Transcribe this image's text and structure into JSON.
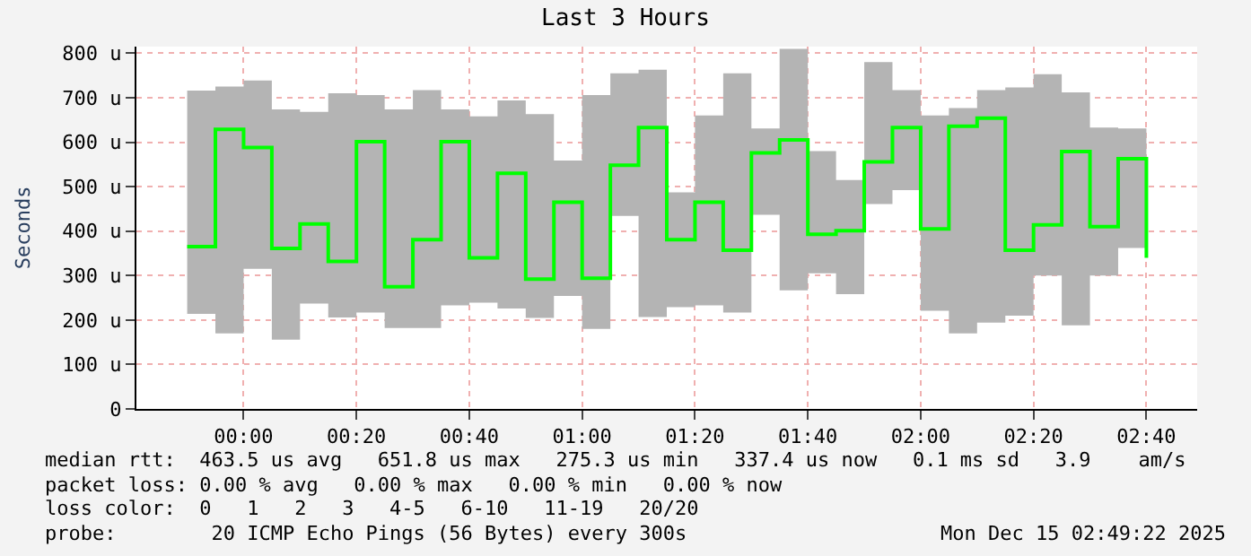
{
  "chart_data": {
    "type": "step",
    "title": "Last 3 Hours",
    "ylabel": "Seconds",
    "x": [
      "2025-12-14T23:50",
      "2025-12-14T23:55",
      "2025-12-15T00:00",
      "2025-12-15T00:05",
      "2025-12-15T00:10",
      "2025-12-15T00:15",
      "2025-12-15T00:20",
      "2025-12-15T00:25",
      "2025-12-15T00:30",
      "2025-12-15T00:35",
      "2025-12-15T00:40",
      "2025-12-15T00:45",
      "2025-12-15T00:50",
      "2025-12-15T00:55",
      "2025-12-15T01:00",
      "2025-12-15T01:05",
      "2025-12-15T01:10",
      "2025-12-15T01:15",
      "2025-12-15T01:20",
      "2025-12-15T01:25",
      "2025-12-15T01:30",
      "2025-12-15T01:35",
      "2025-12-15T01:40",
      "2025-12-15T01:45",
      "2025-12-15T01:50",
      "2025-12-15T01:55",
      "2025-12-15T02:00",
      "2025-12-15T02:05",
      "2025-12-15T02:10",
      "2025-12-15T02:15",
      "2025-12-15T02:20",
      "2025-12-15T02:25",
      "2025-12-15T02:30",
      "2025-12-15T02:35",
      "2025-12-15T02:40"
    ],
    "series": [
      {
        "color": "#00ff00",
        "values": [
          365,
          629,
          588,
          361,
          416,
          332,
          601,
          275,
          381,
          601,
          340,
          530,
          292,
          465,
          294,
          548,
          633,
          381,
          465,
          357,
          576,
          605,
          393,
          401,
          556,
          633,
          405,
          636,
          654,
          357,
          414,
          579,
          410,
          563,
          340
        ],
        "lower": [
          214,
          170,
          315,
          156,
          237,
          206,
          217,
          182,
          182,
          233,
          239,
          226,
          205,
          254,
          180,
          434,
          207,
          229,
          233,
          217,
          437,
          267,
          305,
          258,
          461,
          492,
          221,
          170,
          194,
          210,
          300,
          188,
          300,
          362,
          258
        ],
        "upper": [
          716,
          725,
          739,
          674,
          668,
          710,
          706,
          674,
          717,
          674,
          658,
          694,
          663,
          559,
          706,
          755,
          763,
          487,
          660,
          755,
          631,
          810,
          580,
          515,
          780,
          717,
          660,
          677,
          717,
          723,
          753,
          712,
          633,
          631,
          658
        ]
      }
    ],
    "xlim": [
      "2025-12-14T23:41",
      "2025-12-15T02:49"
    ],
    "xticks": [
      {
        "value": "2025-12-15T00:00",
        "label": "00:00"
      },
      {
        "value": "2025-12-15T00:20",
        "label": "00:20"
      },
      {
        "value": "2025-12-15T00:40",
        "label": "00:40"
      },
      {
        "value": "2025-12-15T01:00",
        "label": "01:00"
      },
      {
        "value": "2025-12-15T01:20",
        "label": "01:20"
      },
      {
        "value": "2025-12-15T01:40",
        "label": "01:40"
      },
      {
        "value": "2025-12-15T02:00",
        "label": "02:00"
      },
      {
        "value": "2025-12-15T02:20",
        "label": "02:20"
      },
      {
        "value": "2025-12-15T02:40",
        "label": "02:40"
      }
    ],
    "ylim": [
      0,
      815
    ],
    "yticks": [
      0,
      {
        "value": 100,
        "label": "100 u"
      },
      {
        "value": 200,
        "label": "200 u"
      },
      {
        "value": 300,
        "label": "300 u"
      },
      {
        "value": 400,
        "label": "400 u"
      },
      {
        "value": 500,
        "label": "500 u"
      },
      {
        "value": 600,
        "label": "600 u"
      },
      {
        "value": 700,
        "label": "700 u"
      },
      {
        "value": 800,
        "label": "800 u"
      }
    ],
    "grid": true,
    "marker": "none",
    "line_style": "solid",
    "annotations": [
      "median rtt:  463.5 us avg   651.8 us max   275.3 us min   337.4 us now   0.1 ms sd   3.9    am/s",
      "packet loss: 0.00 % avg   0.00 % max   0.00 % min   0.00 % now",
      "loss color:  0   1   2   3   4-5   6-10   11-19   20/20",
      "probe:        20 ICMP Echo Pings (56 Bytes) every 300s",
      "Mon Dec 15 02:49:22 2025"
    ]
  }
}
